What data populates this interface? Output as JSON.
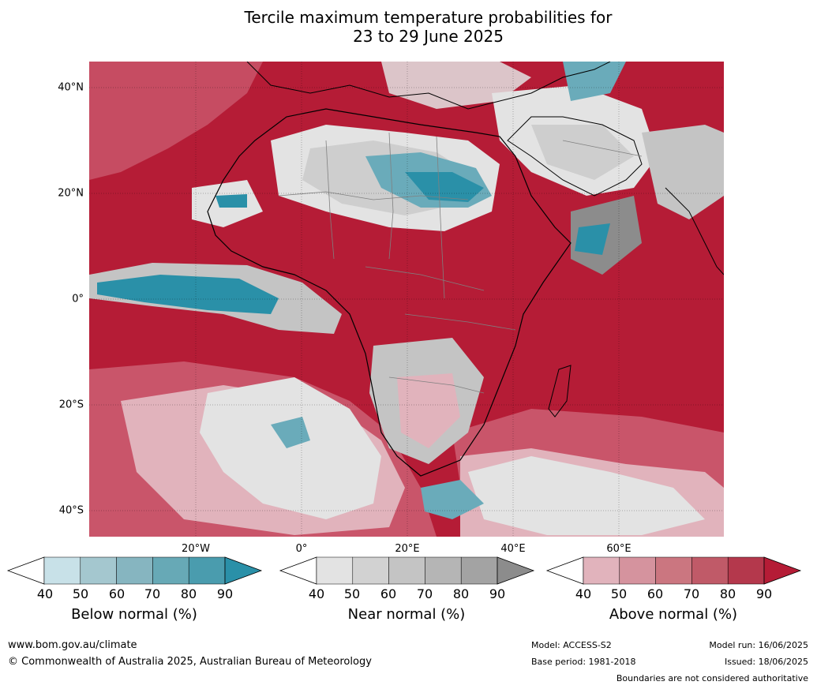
{
  "title": {
    "line1": "Tercile maximum temperature probabilities for",
    "line2": "23 to 29 June 2025"
  },
  "map": {
    "lat_labels": [
      "40°N",
      "20°N",
      "0°",
      "20°S",
      "40°S"
    ],
    "lon_labels": [
      "20°W",
      "0°",
      "20°E",
      "40°E",
      "60°E"
    ],
    "colors": {
      "above_dark": "#b51c36",
      "above_mid": "#c9556a",
      "above_light": "#e1b3bc",
      "near_light": "#e3e3e3",
      "near_mid": "#c4c4c4",
      "near_dark": "#8c8c8c",
      "below_light": "#c8e1e8",
      "below_mid": "#6aabba",
      "below_dark": "#2a90a8",
      "land_border": "#000000",
      "country_border": "#808080"
    }
  },
  "colorbars": [
    {
      "label": "Below normal (%)",
      "ticks": [
        "40",
        "50",
        "60",
        "70",
        "80",
        "90"
      ],
      "colors": [
        "#ffffff",
        "#c8e1e8",
        "#a4c7cf",
        "#86b5c0",
        "#67a9b6",
        "#4a9cae",
        "#2a90a8"
      ]
    },
    {
      "label": "Near normal (%)",
      "ticks": [
        "40",
        "50",
        "60",
        "70",
        "80",
        "90"
      ],
      "colors": [
        "#ffffff",
        "#e3e3e3",
        "#d2d2d2",
        "#c4c4c4",
        "#b5b5b5",
        "#a3a3a3",
        "#8c8c8c"
      ]
    },
    {
      "label": "Above normal (%)",
      "ticks": [
        "40",
        "50",
        "60",
        "70",
        "80",
        "90"
      ],
      "colors": [
        "#ffffff",
        "#e1b3bc",
        "#d5939e",
        "#cb7680",
        "#c05a68",
        "#b4384c",
        "#b51c36"
      ]
    }
  ],
  "footer": {
    "website": "www.bom.gov.au/climate",
    "copyright": "© Commonwealth of Australia 2025, Australian Bureau of Meteorology",
    "model": "Model: ACCESS-S2",
    "base_period": "Base period: 1981-2018",
    "model_run": "Model run: 16/06/2025",
    "issued": "Issued: 18/06/2025",
    "disclaimer": "Boundaries are not considered authoritative"
  }
}
